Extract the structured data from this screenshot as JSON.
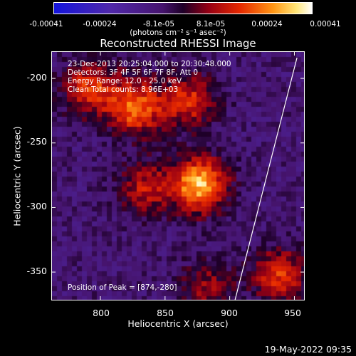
{
  "colorbar": {
    "ticks": [
      "-0.00041",
      "-0.00024",
      "-8.1e-05",
      "8.1e-05",
      "0.00024",
      "0.00041"
    ],
    "units": "(photons cm⁻² s⁻¹ asec⁻²)"
  },
  "title": "Reconstructed RHESSI Image",
  "annotation": {
    "line1": "23-Dec-2013 20:25:04.000 to 20:30:48.000",
    "line2": "Detectors: 3F 4F 5F 6F 7F 8F, Att 0",
    "line3": "Energy Range: 12.0 - 25.0 keV",
    "line4": "Clean     Total counts: 8.96E+03",
    "peak": "Position of Peak = [874,-280]"
  },
  "timestamp": "19-May-2022 09:35",
  "chart_data": {
    "type": "heatmap",
    "title": "Reconstructed RHESSI Image",
    "xlabel": "Heliocentric X (arcsec)",
    "ylabel": "Heliocentric Y (arcsec)",
    "xlim": [
      762,
      958
    ],
    "ylim": [
      -372,
      -179
    ],
    "xticks": [
      "800",
      "850",
      "900",
      "950"
    ],
    "yticks": [
      "-200",
      "-250",
      "-300",
      "-350"
    ],
    "colorbar_range": [
      -0.00041,
      0.00041
    ],
    "peak": [
      874,
      -280
    ],
    "sources": [
      {
        "x": 874,
        "y": -280,
        "value": 0.00041
      },
      {
        "x": 825,
        "y": -220,
        "value": 0.00032
      },
      {
        "x": 790,
        "y": -205,
        "value": 0.00026
      },
      {
        "x": 866,
        "y": -215,
        "value": 0.00024
      },
      {
        "x": 832,
        "y": -282,
        "value": 0.0002
      },
      {
        "x": 936,
        "y": -350,
        "value": 0.00026
      },
      {
        "x": 880,
        "y": -360,
        "value": 0.00016
      }
    ],
    "limb_line": [
      [
        952,
        -184
      ],
      [
        904,
        -372
      ]
    ]
  }
}
